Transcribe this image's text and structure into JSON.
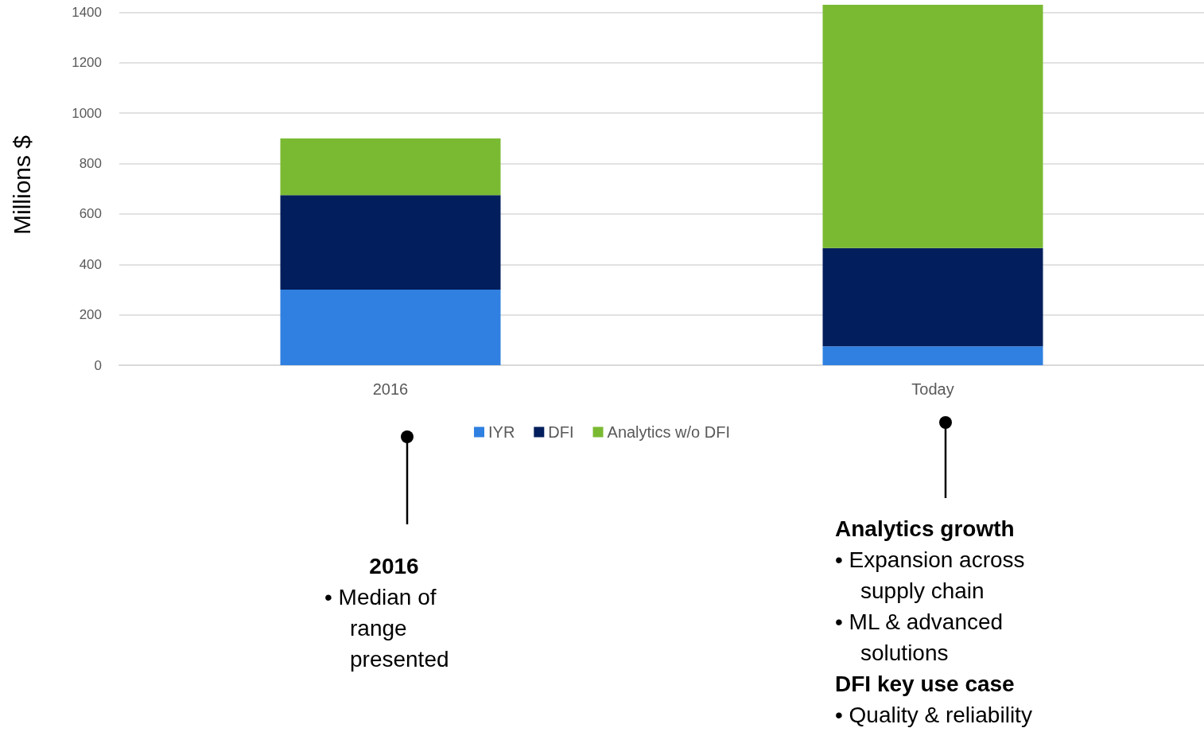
{
  "chart_data": {
    "type": "bar",
    "stacked": true,
    "ylabel": "Millions $",
    "categories": [
      "2016",
      "Today"
    ],
    "series": [
      {
        "name": "IYR",
        "color": "#2f80e0",
        "values": [
          300,
          75
        ]
      },
      {
        "name": "DFI",
        "color": "#021e5c",
        "values": [
          375,
          390
        ]
      },
      {
        "name": "Analytics w/o DFI",
        "color": "#7aba33",
        "values": [
          225,
          965
        ]
      }
    ],
    "ylim": [
      0,
      1430
    ],
    "yticks": [
      0,
      200,
      400,
      600,
      800,
      1000,
      1200,
      1400
    ],
    "grid": "y",
    "legend": "bottom",
    "annotations": [
      "2016",
      "• Median of range presented",
      "Analytics growth",
      "• Expansion across supply chain",
      "• ML & advanced solutions",
      "DFI key use case",
      "• Quality & reliability"
    ]
  }
}
